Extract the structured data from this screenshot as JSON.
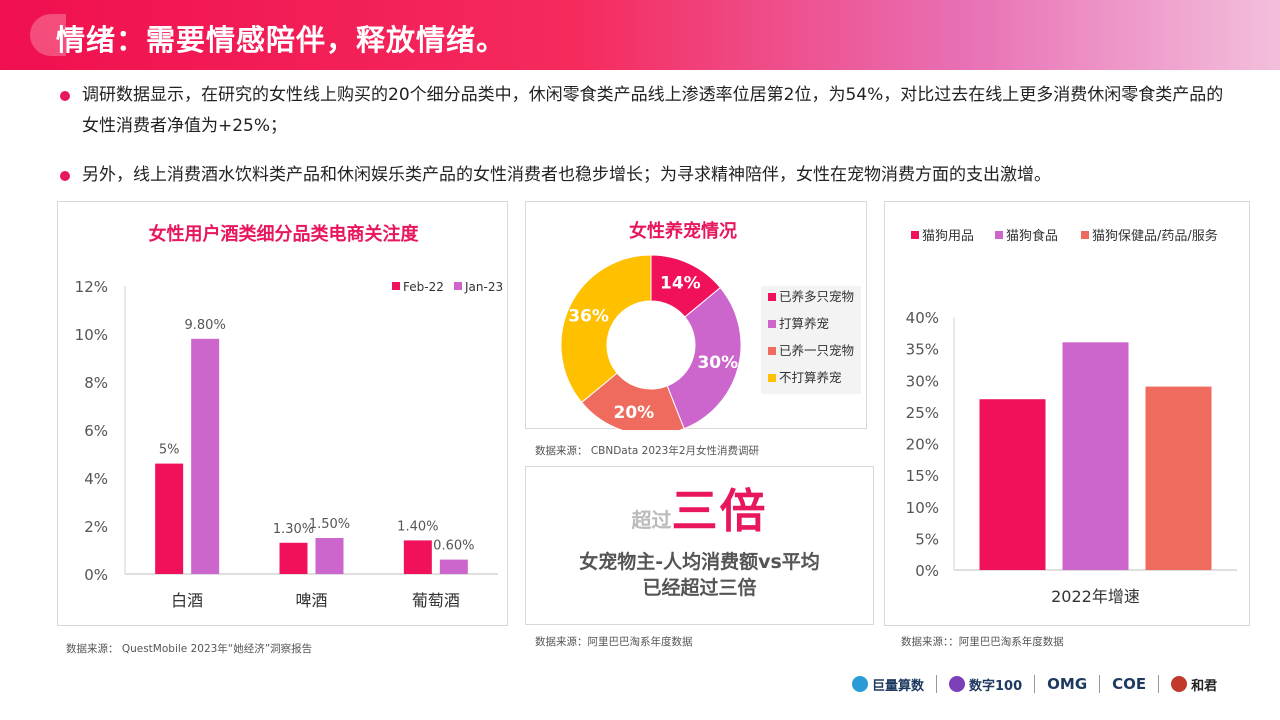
{
  "header": {
    "title": "情绪：需要情感陪伴，释放情绪。"
  },
  "bullets": [
    "调研数据显示，在研究的女性线上购买的20个细分品类中，休闲零食类产品线上渗透率位居第2位，为54%，对比过去在线上更多消费休闲零食类产品的女性消费者净值为+25%；",
    "另外，线上消费酒水饮料类产品和休闲娱乐类产品的女性消费者也稳步增长；为寻求精神陪伴，女性在宠物消费方面的支出激增。"
  ],
  "colors": {
    "accent": "#e8175d",
    "violet": "#cc66cc",
    "salmon": "#ee6b5e",
    "gold": "#ffc000"
  },
  "liquor_panel": {
    "source": "数据来源：   QuestMobile 2023年“她经济”洞察报告"
  },
  "pet_panel": {
    "source": "数据来源：  CBNData 2023年2月女性消费调研"
  },
  "times_panel": {
    "small": "超过",
    "big": "三倍",
    "line1": "女宠物主-人均消费额vs平均",
    "line2": "已经超过三倍",
    "source": "数据来源：阿里巴巴淘系年度数据"
  },
  "growth_panel": {
    "source": "数据来源：：阿里巴巴淘系年度数据"
  },
  "logos": [
    "巨量算数",
    "数字100",
    "OMG",
    "COE",
    "和君"
  ],
  "chart_data": [
    {
      "type": "bar",
      "title": "女性用户酒类细分品类电商关注度",
      "categories": [
        "白酒",
        "啤酒",
        "葡萄酒"
      ],
      "series": [
        {
          "name": "Feb-22",
          "values": [
            4.6,
            1.3,
            1.4
          ],
          "labels": [
            "5%",
            "1.30%",
            "1.40%"
          ],
          "color": "#f0115a"
        },
        {
          "name": "Jan-23",
          "values": [
            9.8,
            1.5,
            0.6
          ],
          "labels": [
            "9.80%",
            "1.50%",
            "0.60%"
          ],
          "color": "#cc66cc"
        }
      ],
      "ylim": [
        0,
        12
      ],
      "yticks": [
        "0%",
        "2%",
        "4%",
        "6%",
        "8%",
        "10%",
        "12%"
      ],
      "legend": "top-right"
    },
    {
      "type": "pie",
      "title": "女性养宠情况",
      "slices": [
        {
          "name": "已养多只宠物",
          "value": 14,
          "label": "14%",
          "color": "#f0115a"
        },
        {
          "name": "打算养宠",
          "value": 30,
          "label": "30%",
          "color": "#cc66cc"
        },
        {
          "name": "已养一只宠物",
          "value": 20,
          "label": "20%",
          "color": "#ee6b5e"
        },
        {
          "name": "不打算养宠",
          "value": 36,
          "label": "36%",
          "color": "#ffc000"
        }
      ],
      "legend": "right"
    },
    {
      "type": "bar",
      "categories": [
        "2022年增速"
      ],
      "series": [
        {
          "name": "猫狗用品",
          "values": [
            27
          ],
          "color": "#f0115a"
        },
        {
          "name": "猫狗食品",
          "values": [
            36
          ],
          "color": "#cc66cc"
        },
        {
          "name": "猫狗保健品/药品/服务",
          "values": [
            29
          ],
          "color": "#ee6b5e"
        }
      ],
      "ylim": [
        0,
        40
      ],
      "yticks": [
        "0%",
        "5%",
        "10%",
        "15%",
        "20%",
        "25%",
        "30%",
        "35%",
        "40%"
      ],
      "legend": "top"
    }
  ]
}
